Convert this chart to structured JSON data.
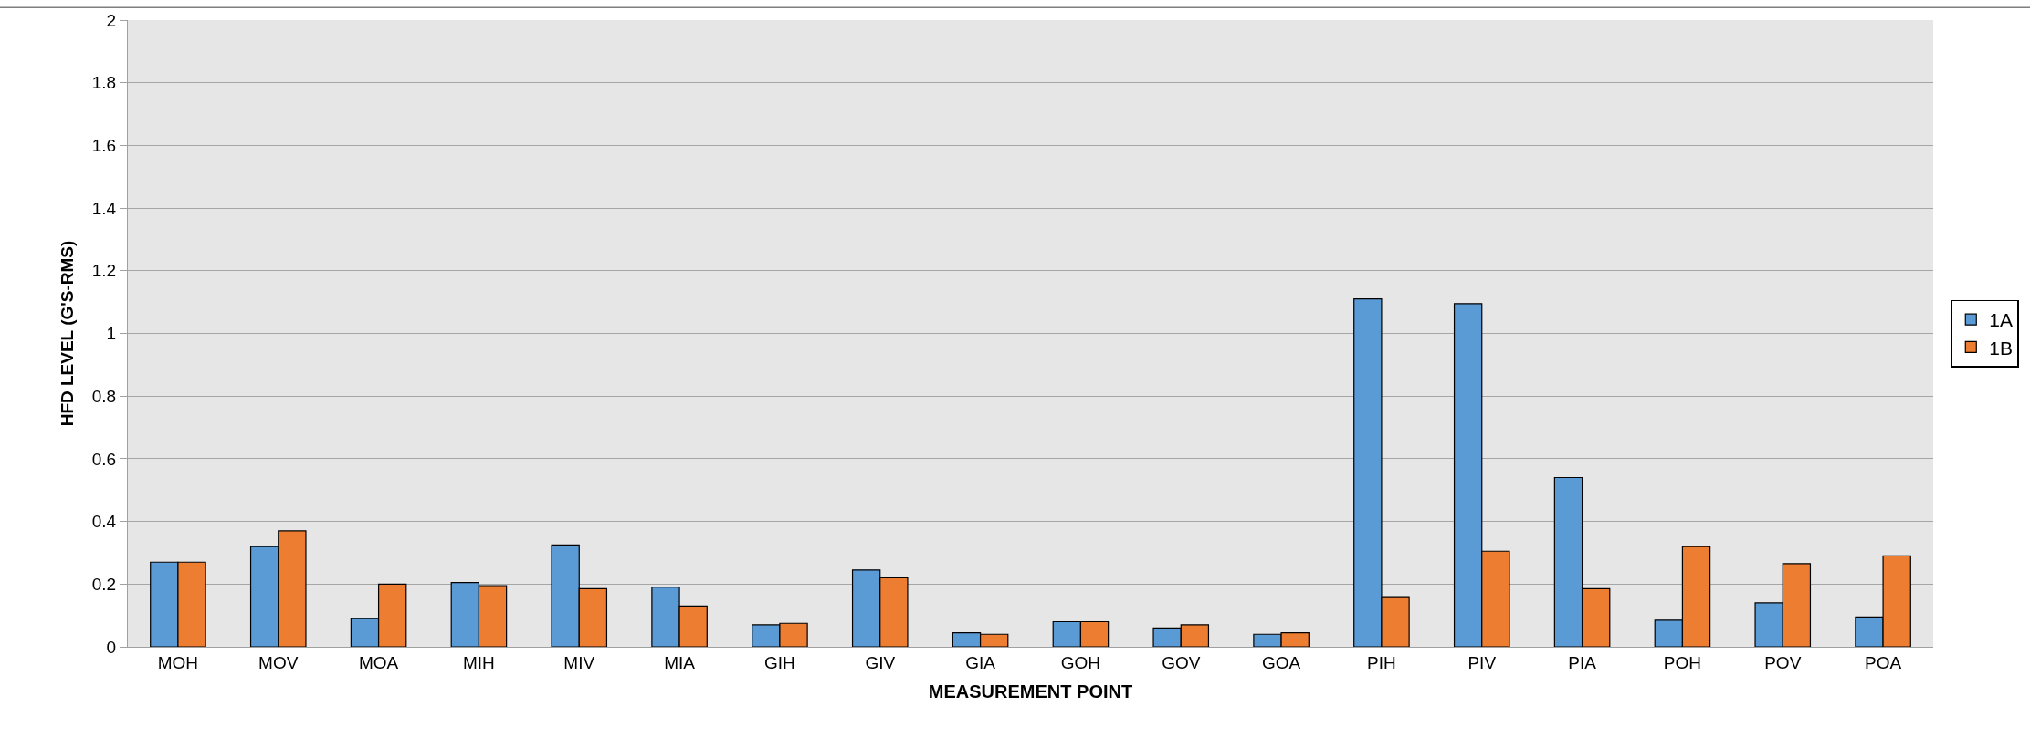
{
  "chart_data": {
    "type": "bar",
    "xlabel": "MEASUREMENT POINT",
    "ylabel": "HFD LEVEL (G'S-RMS)",
    "categories": [
      "MOH",
      "MOV",
      "MOA",
      "MIH",
      "MIV",
      "MIA",
      "GIH",
      "GIV",
      "GIA",
      "GOH",
      "GOV",
      "GOA",
      "PIH",
      "PIV",
      "PIA",
      "POH",
      "POV",
      "POA"
    ],
    "series": [
      {
        "name": "1A",
        "color": "#5b9bd5",
        "values": [
          0.27,
          0.32,
          0.09,
          0.205,
          0.325,
          0.19,
          0.07,
          0.245,
          0.045,
          0.08,
          0.06,
          0.04,
          1.11,
          1.095,
          0.54,
          0.085,
          0.14,
          0.095
        ]
      },
      {
        "name": "1B",
        "color": "#ed7d31",
        "values": [
          0.27,
          0.37,
          0.2,
          0.195,
          0.185,
          0.13,
          0.075,
          0.22,
          0.04,
          0.08,
          0.07,
          0.045,
          0.16,
          0.305,
          0.185,
          0.32,
          0.265,
          0.29
        ]
      }
    ],
    "ylim": [
      0,
      2
    ],
    "yticks": [
      0,
      0.2,
      0.4,
      0.6,
      0.8,
      1,
      1.2,
      1.4,
      1.6,
      1.8,
      2
    ],
    "grid": "y",
    "legend": "right"
  }
}
